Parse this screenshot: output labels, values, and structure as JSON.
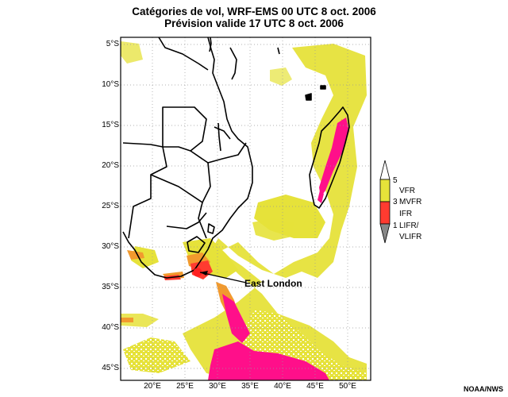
{
  "title": {
    "line1": "Catégories de vol, WRF-EMS 00 UTC 8 oct. 2006",
    "line2": "Prévision valide 17 UTC 8 oct. 2006"
  },
  "lat_labels": [
    "5°S",
    "10°S",
    "15°S",
    "20°S",
    "25°S",
    "30°S",
    "35°S",
    "40°S",
    "45°S"
  ],
  "lon_labels": [
    "20°E",
    "25°E",
    "30°E",
    "35°E",
    "40°E",
    "45°E",
    "50°E"
  ],
  "annotation": {
    "label": "East London",
    "marker_color": "#ff2020"
  },
  "legend": {
    "tick_top": "5",
    "tick_mid": "3",
    "tick_low": "1",
    "vfr": "VFR",
    "mvfr": "MVFR",
    "ifr": "IFR",
    "lifr": "LIFR/",
    "vlifr": "VLIFR"
  },
  "colors": {
    "vfr": "#e6e23a",
    "mvfr": "#f29a2e",
    "ifr": "#ff3b30",
    "lifr": "#ff0f8a"
  },
  "credit": "NOAA/NWS"
}
